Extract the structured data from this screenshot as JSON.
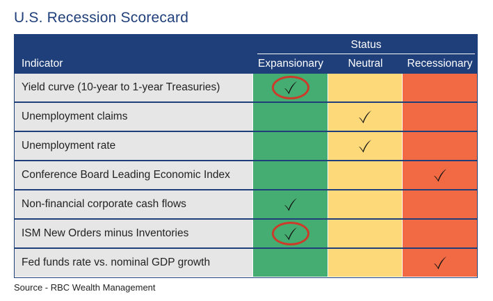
{
  "title": "U.S. Recession Scorecard",
  "header": {
    "status": "Status",
    "indicator": "Indicator",
    "expansionary": "Expansionary",
    "neutral": "Neutral",
    "recessionary": "Recessionary"
  },
  "colors": {
    "header_bg": "#1f3f7a",
    "expansionary": "#46ad72",
    "neutral": "#fdd97a",
    "recessionary": "#f26a43",
    "label_bg": "#e6e6e7",
    "highlight_circle": "#cc3b2a"
  },
  "rows": [
    {
      "label": "Yield curve (10-year to 1-year Treasuries)",
      "status": "expansionary",
      "circled": true
    },
    {
      "label": "Unemployment claims",
      "status": "neutral",
      "circled": false
    },
    {
      "label": "Unemployment rate",
      "status": "neutral",
      "circled": false
    },
    {
      "label": "Conference Board Leading Economic Index",
      "status": "recessionary",
      "circled": false
    },
    {
      "label": "Non-financial corporate cash flows",
      "status": "expansionary",
      "circled": false
    },
    {
      "label": "ISM New Orders minus Inventories",
      "status": "expansionary",
      "circled": true
    },
    {
      "label": "Fed funds rate vs. nominal GDP growth",
      "status": "recessionary",
      "circled": false
    }
  ],
  "icons": {
    "check": "check-mark-icon",
    "circle": "highlight-circle-icon"
  },
  "source": "Source - RBC Wealth Management"
}
